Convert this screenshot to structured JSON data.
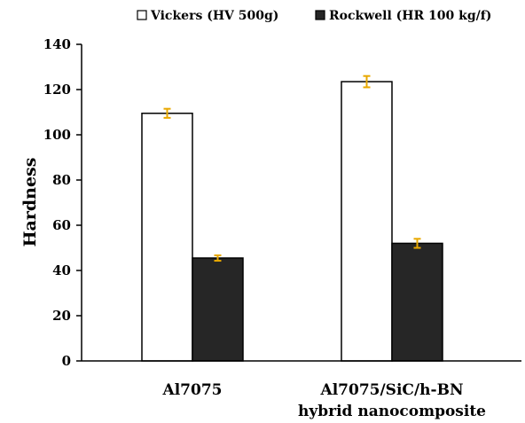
{
  "chart_data": {
    "type": "bar",
    "title": "",
    "xlabel": "",
    "ylabel": "Hardness",
    "ylim": [
      0,
      140
    ],
    "yticks": [
      0,
      20,
      40,
      60,
      80,
      100,
      120,
      140
    ],
    "categories": [
      [
        "Al7075"
      ],
      [
        "Al7075/SiC/h-BN",
        "hybrid nanocomposite"
      ]
    ],
    "series": [
      {
        "name": "Vickers (HV 500g)",
        "values": [
          109.5,
          123.5
        ],
        "errors": [
          2,
          2.5
        ],
        "fill": "#ffffff"
      },
      {
        "name": "Rockwell (HR 100 kg/f)",
        "values": [
          45.5,
          52
        ],
        "errors": [
          1.2,
          2
        ],
        "fill": "#262626"
      }
    ],
    "error_bar_color": "#e8a800",
    "legend_position": "top",
    "grid": false
  }
}
